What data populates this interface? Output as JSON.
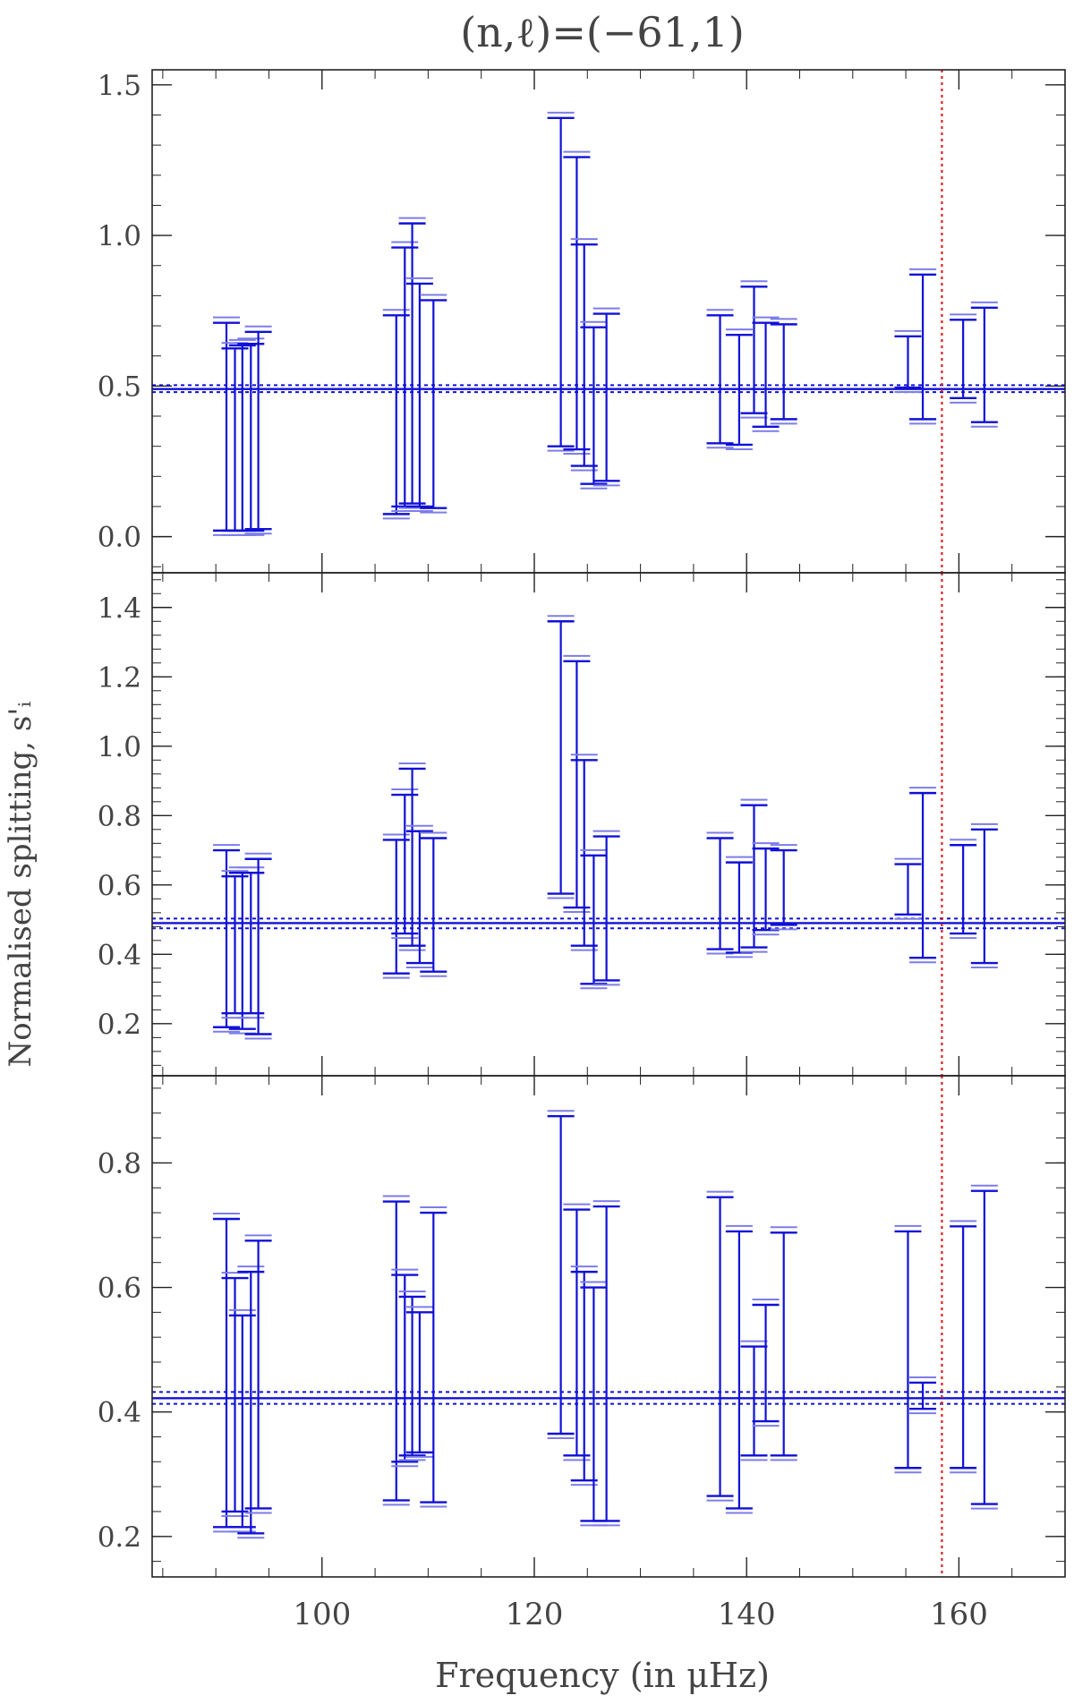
{
  "chart_data": {
    "type": "errorbar",
    "title": "(n,ℓ)=(−61,1)",
    "xlabel": "Frequency (in μHz)",
    "ylabel": "Normalised splitting, s'ᵢ",
    "xlim": [
      84,
      170
    ],
    "xticks": [
      100,
      120,
      140,
      160
    ],
    "vline": 158.4,
    "colors": {
      "bars": "#1010d8",
      "bars_alt": "#7d7de8",
      "vline": "#e02020",
      "frame": "#222222"
    },
    "panels": [
      {
        "ylim": [
          -0.12,
          1.55
        ],
        "yticks": [
          "0.0",
          "0.5",
          "1.0",
          "1.5"
        ],
        "hline": 0.49,
        "band": [
          0.48,
          0.503
        ],
        "bars": [
          {
            "x": 91.0,
            "lo": 0.02,
            "hi": 0.71
          },
          {
            "x": 91.8,
            "lo": 0.02,
            "hi": 0.625
          },
          {
            "x": 92.5,
            "lo": 0.02,
            "hi": 0.635
          },
          {
            "x": 93.3,
            "lo": 0.02,
            "hi": 0.64
          },
          {
            "x": 94.0,
            "lo": 0.025,
            "hi": 0.68
          },
          {
            "x": 107.0,
            "lo": 0.075,
            "hi": 0.735
          },
          {
            "x": 107.8,
            "lo": 0.1,
            "hi": 0.96
          },
          {
            "x": 108.5,
            "lo": 0.11,
            "hi": 1.04
          },
          {
            "x": 109.2,
            "lo": 0.1,
            "hi": 0.84
          },
          {
            "x": 110.5,
            "lo": 0.095,
            "hi": 0.785
          },
          {
            "x": 122.5,
            "lo": 0.3,
            "hi": 1.39
          },
          {
            "x": 124.0,
            "lo": 0.29,
            "hi": 1.26
          },
          {
            "x": 124.7,
            "lo": 0.235,
            "hi": 0.97
          },
          {
            "x": 125.6,
            "lo": 0.175,
            "hi": 0.695
          },
          {
            "x": 126.8,
            "lo": 0.185,
            "hi": 0.74
          },
          {
            "x": 137.5,
            "lo": 0.31,
            "hi": 0.735
          },
          {
            "x": 139.3,
            "lo": 0.305,
            "hi": 0.67
          },
          {
            "x": 140.7,
            "lo": 0.41,
            "hi": 0.83
          },
          {
            "x": 141.8,
            "lo": 0.365,
            "hi": 0.71
          },
          {
            "x": 143.5,
            "lo": 0.39,
            "hi": 0.705
          },
          {
            "x": 155.2,
            "lo": 0.495,
            "hi": 0.665
          },
          {
            "x": 156.6,
            "lo": 0.39,
            "hi": 0.87
          },
          {
            "x": 160.4,
            "lo": 0.46,
            "hi": 0.72
          },
          {
            "x": 162.4,
            "lo": 0.38,
            "hi": 0.76
          }
        ]
      },
      {
        "ylim": [
          0.05,
          1.5
        ],
        "yticks": [
          "0.2",
          "0.4",
          "0.6",
          "0.8",
          "1.0",
          "1.2",
          "1.4"
        ],
        "hline": 0.49,
        "band": [
          0.475,
          0.503
        ],
        "bars": [
          {
            "x": 91.0,
            "lo": 0.19,
            "hi": 0.7
          },
          {
            "x": 91.8,
            "lo": 0.23,
            "hi": 0.625
          },
          {
            "x": 92.5,
            "lo": 0.185,
            "hi": 0.635
          },
          {
            "x": 93.3,
            "lo": 0.23,
            "hi": 0.635
          },
          {
            "x": 94.0,
            "lo": 0.17,
            "hi": 0.675
          },
          {
            "x": 107.0,
            "lo": 0.345,
            "hi": 0.73
          },
          {
            "x": 107.8,
            "lo": 0.46,
            "hi": 0.86
          },
          {
            "x": 108.5,
            "lo": 0.425,
            "hi": 0.935
          },
          {
            "x": 109.2,
            "lo": 0.375,
            "hi": 0.755
          },
          {
            "x": 110.5,
            "lo": 0.35,
            "hi": 0.735
          },
          {
            "x": 122.5,
            "lo": 0.575,
            "hi": 1.36
          },
          {
            "x": 124.0,
            "lo": 0.535,
            "hi": 1.245
          },
          {
            "x": 124.7,
            "lo": 0.425,
            "hi": 0.96
          },
          {
            "x": 125.6,
            "lo": 0.315,
            "hi": 0.685
          },
          {
            "x": 126.8,
            "lo": 0.325,
            "hi": 0.74
          },
          {
            "x": 137.5,
            "lo": 0.415,
            "hi": 0.735
          },
          {
            "x": 139.3,
            "lo": 0.405,
            "hi": 0.665
          },
          {
            "x": 140.7,
            "lo": 0.42,
            "hi": 0.83
          },
          {
            "x": 141.8,
            "lo": 0.47,
            "hi": 0.705
          },
          {
            "x": 143.5,
            "lo": 0.485,
            "hi": 0.7
          },
          {
            "x": 155.2,
            "lo": 0.515,
            "hi": 0.66
          },
          {
            "x": 156.6,
            "lo": 0.39,
            "hi": 0.865
          },
          {
            "x": 160.4,
            "lo": 0.46,
            "hi": 0.715
          },
          {
            "x": 162.4,
            "lo": 0.375,
            "hi": 0.76
          }
        ]
      },
      {
        "ylim": [
          0.135,
          0.94
        ],
        "yticks": [
          "0.2",
          "0.4",
          "0.6",
          "0.8"
        ],
        "hline": 0.422,
        "band": [
          0.413,
          0.432
        ],
        "bars": [
          {
            "x": 91.0,
            "lo": 0.215,
            "hi": 0.71
          },
          {
            "x": 91.8,
            "lo": 0.24,
            "hi": 0.615
          },
          {
            "x": 92.5,
            "lo": 0.215,
            "hi": 0.555
          },
          {
            "x": 93.3,
            "lo": 0.205,
            "hi": 0.625
          },
          {
            "x": 94.0,
            "lo": 0.245,
            "hi": 0.675
          },
          {
            "x": 107.0,
            "lo": 0.258,
            "hi": 0.738
          },
          {
            "x": 107.8,
            "lo": 0.32,
            "hi": 0.62
          },
          {
            "x": 108.5,
            "lo": 0.33,
            "hi": 0.585
          },
          {
            "x": 109.2,
            "lo": 0.335,
            "hi": 0.56
          },
          {
            "x": 110.5,
            "lo": 0.255,
            "hi": 0.72
          },
          {
            "x": 122.5,
            "lo": 0.365,
            "hi": 0.875
          },
          {
            "x": 124.0,
            "lo": 0.33,
            "hi": 0.725
          },
          {
            "x": 124.7,
            "lo": 0.29,
            "hi": 0.625
          },
          {
            "x": 125.6,
            "lo": 0.225,
            "hi": 0.6
          },
          {
            "x": 126.8,
            "lo": 0.225,
            "hi": 0.73
          },
          {
            "x": 137.5,
            "lo": 0.265,
            "hi": 0.745
          },
          {
            "x": 139.3,
            "lo": 0.245,
            "hi": 0.69
          },
          {
            "x": 140.7,
            "lo": 0.33,
            "hi": 0.505
          },
          {
            "x": 141.8,
            "lo": 0.385,
            "hi": 0.572
          },
          {
            "x": 143.5,
            "lo": 0.33,
            "hi": 0.688
          },
          {
            "x": 155.2,
            "lo": 0.31,
            "hi": 0.69
          },
          {
            "x": 156.6,
            "lo": 0.405,
            "hi": 0.447
          },
          {
            "x": 160.4,
            "lo": 0.31,
            "hi": 0.698
          },
          {
            "x": 162.4,
            "lo": 0.252,
            "hi": 0.755
          }
        ]
      }
    ]
  }
}
